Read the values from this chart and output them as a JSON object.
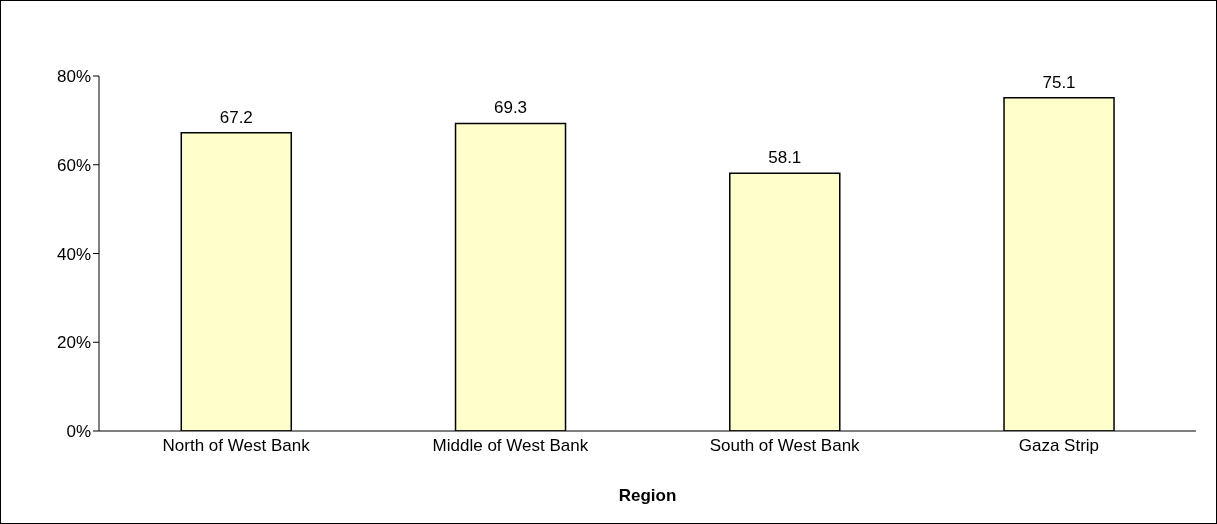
{
  "chart_data": {
    "type": "bar",
    "xlabel": "Region",
    "categories": [
      "North of West Bank",
      "Middle of West Bank",
      "South of West Bank",
      "Gaza Strip"
    ],
    "values": [
      67.2,
      69.3,
      58.1,
      75.1
    ],
    "color": "#ffffcc",
    "ylim": [
      0,
      80
    ],
    "yticks": [
      {
        "value": 0,
        "label": "0%"
      },
      {
        "value": 20,
        "label": "20%"
      },
      {
        "value": 40,
        "label": "40%"
      },
      {
        "value": 60,
        "label": "60%"
      },
      {
        "value": 80,
        "label": "80%"
      }
    ],
    "grid": false,
    "data_labels": true
  }
}
